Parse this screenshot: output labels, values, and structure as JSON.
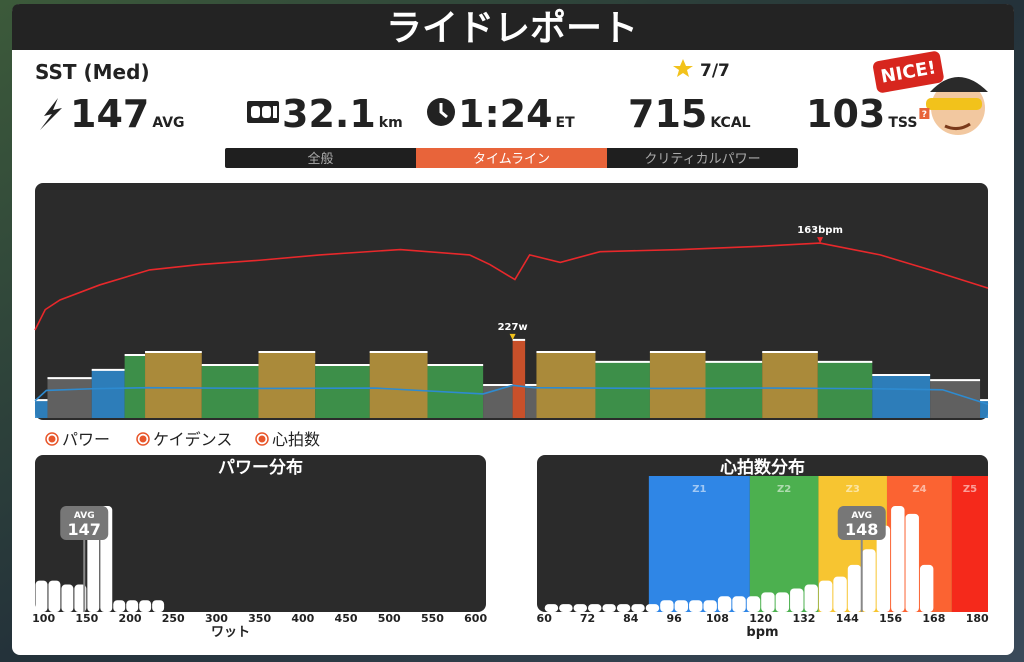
{
  "header": {
    "title": "ライドレポート"
  },
  "workout": {
    "name": "SST (Med)",
    "stars": "7/7"
  },
  "stats": [
    {
      "value": 147,
      "unit": "AVG"
    },
    {
      "value": 32.1,
      "unit": "km"
    },
    {
      "value": "1:24",
      "unit": "ET"
    },
    {
      "value": 715,
      "unit": "KCAL"
    },
    {
      "value": 103,
      "unit": "TSS",
      "help": "?"
    }
  ],
  "badge": "NICE!",
  "tabs": {
    "items": [
      "全般",
      "タイムライン",
      "クリティカルパワー"
    ],
    "active": 1
  },
  "chart_data": [
    {
      "type": "timeline",
      "xlim": [
        0,
        84
      ],
      "ylim": [
        0,
        683
      ],
      "y2lim": [
        0,
        219
      ],
      "legend_marker_color": "#e8572c",
      "series": [
        {
          "name": "パワー",
          "color": "#ffffff",
          "x": [
            0,
            1.1,
            5.0,
            7.9,
            9.7,
            14.7,
            19.7,
            24.7,
            29.5,
            34.6,
            39.5,
            42.1,
            43.2,
            44.2,
            49.4,
            54.2,
            59.1,
            64.1,
            69.0,
            73.8,
            78.9,
            83.3
          ],
          "values": [
            52,
            116,
            140,
            183,
            192,
            154,
            192,
            154,
            192,
            154,
            96,
            227,
            96,
            192,
            163,
            192,
            163,
            192,
            163,
            125,
            110,
            52
          ],
          "zone_colors": [
            "#2e86c9",
            "#666666",
            "#2e86c9",
            "#3f9a4c",
            "#b8953c",
            "#3f9a4c",
            "#b8953c",
            "#3f9a4c",
            "#b8953c",
            "#3f9a4c",
            "#666666",
            "#d9542a",
            "#666666",
            "#b8953c",
            "#3f9a4c",
            "#b8953c",
            "#3f9a4c",
            "#b8953c",
            "#3f9a4c",
            "#2e86c9",
            "#666666",
            "#2e86c9"
          ]
        },
        {
          "name": "ケイデンス",
          "color": "#2e8bd0",
          "x": [
            0,
            1,
            5,
            10,
            20,
            30,
            39.5,
            42.1,
            44,
            55,
            65,
            74,
            80,
            84
          ],
          "values": [
            50,
            80,
            85,
            88,
            86,
            87,
            70,
            95,
            88,
            86,
            87,
            85,
            82,
            40
          ]
        },
        {
          "name": "心拍数",
          "color": "#e8282b",
          "axis": "y2",
          "x": [
            0,
            0.9,
            2.2,
            5.7,
            10.1,
            14.5,
            19.8,
            25.1,
            32.2,
            38.3,
            40.1,
            42.3,
            43.6,
            46.3,
            49.8,
            56.9,
            63.9,
            69.2,
            74.5,
            78.9,
            84
          ],
          "values": [
            82,
            101,
            110,
            124,
            138,
            143,
            147,
            152,
            157,
            152,
            143,
            129,
            152,
            145,
            155,
            157,
            160,
            163,
            152,
            138,
            121
          ]
        }
      ],
      "annotations": [
        {
          "text": "227w",
          "x": 42.1,
          "y": 227,
          "series": 0,
          "color": "#f2c21b"
        },
        {
          "text": "163bpm",
          "x": 69.2,
          "y": 163,
          "series": 2,
          "color": "#e8282b"
        }
      ]
    },
    {
      "type": "histogram",
      "title": "パワー分布",
      "xlabel": "ワット",
      "color": "#ffffff",
      "bins": [
        90,
        105,
        120,
        135,
        150,
        165,
        180,
        195,
        210,
        225,
        240
      ],
      "values": [
        8,
        8,
        7,
        7,
        27,
        27,
        3,
        3,
        3,
        3
      ],
      "xlim": [
        90,
        612
      ],
      "ylim": [
        0,
        40
      ],
      "xticks": [
        100,
        150,
        200,
        250,
        300,
        350,
        400,
        450,
        500,
        550,
        600
      ],
      "avg": {
        "label": "AVG",
        "value": 147
      }
    },
    {
      "type": "histogram",
      "title": "心拍数分布",
      "xlabel": "bpm",
      "color": "#ffffff",
      "bins": [
        60,
        64,
        68,
        72,
        76,
        80,
        84,
        88,
        92,
        96,
        100,
        104,
        108,
        112,
        116,
        120,
        124,
        128,
        132,
        136,
        140,
        144,
        148,
        152,
        156,
        160,
        164,
        168
      ],
      "values": [
        2,
        2,
        2,
        2,
        2,
        2,
        2,
        2,
        3,
        3,
        3,
        3,
        4,
        4,
        4,
        5,
        5,
        6,
        7,
        8,
        9,
        12,
        16,
        22,
        27,
        25,
        12
      ],
      "xlim": [
        58,
        183
      ],
      "ylim": [
        0,
        40
      ],
      "xticks": [
        60,
        72,
        84,
        96,
        108,
        120,
        132,
        144,
        156,
        168,
        180
      ],
      "avg": {
        "label": "AVG",
        "value": 148
      },
      "zones": {
        "names": [
          "Z1",
          "Z2",
          "Z3",
          "Z4",
          "Z5"
        ],
        "starts": [
          89,
          117,
          136,
          155,
          173
        ],
        "colors": [
          "#2f86e6",
          "#4cb04f",
          "#f7c531",
          "#fb6332",
          "#f5291b"
        ]
      }
    }
  ]
}
